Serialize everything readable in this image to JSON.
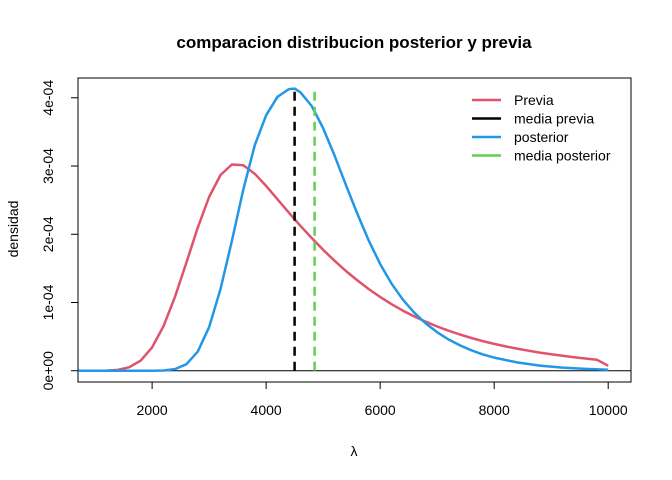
{
  "chart_data": {
    "type": "line",
    "title": "comparacion distribucion posterior y previa",
    "xlabel": "λ",
    "ylabel": "densidad",
    "xlim": [
      700,
      10400
    ],
    "ylim": [
      -1.65e-05,
      0.000429
    ],
    "x_ticks": [
      2000,
      4000,
      6000,
      8000,
      10000
    ],
    "x_tick_labels": [
      "2000",
      "4000",
      "6000",
      "8000",
      "10000"
    ],
    "y_ticks": [
      0,
      0.0001,
      0.0002,
      0.0003,
      0.0004
    ],
    "y_tick_labels": [
      "0e+00",
      "1e-04",
      "2e-04",
      "3e-04",
      "4e-04"
    ],
    "hline": 0,
    "grid": false,
    "legend_position": "top-right",
    "series": [
      {
        "name": "Previa",
        "color": "#df536b",
        "style": "solid",
        "x": [
          700,
          1000,
          1200,
          1400,
          1600,
          1800,
          2000,
          2200,
          2400,
          2600,
          2800,
          3000,
          3200,
          3400,
          3600,
          3800,
          4000,
          4200,
          4400,
          4600,
          4800,
          5000,
          5200,
          5400,
          5600,
          5800,
          6000,
          6200,
          6400,
          6600,
          6800,
          7000,
          7200,
          7400,
          7600,
          7800,
          8000,
          8200,
          8400,
          8600,
          8800,
          9000,
          9200,
          9400,
          9600,
          9800,
          10000
        ],
        "y": [
          0,
          0,
          2e-07,
          1.3e-06,
          5.2e-06,
          1.49e-05,
          3.42e-05,
          6.53e-05,
          0.0001079,
          0.0001581,
          0.0002095,
          0.0002546,
          0.0002868,
          0.0003022,
          0.0003012,
          0.0002887,
          0.0002709,
          0.0002512,
          0.0002316,
          0.0002126,
          0.0001945,
          0.0001773,
          0.0001612,
          0.0001462,
          0.0001324,
          0.0001196,
          0.000108,
          9.75e-05,
          8.8e-05,
          7.95e-05,
          7.18e-05,
          6.49e-05,
          5.87e-05,
          5.31e-05,
          4.8e-05,
          4.35e-05,
          3.94e-05,
          3.57e-05,
          3.24e-05,
          2.94e-05,
          2.66e-05,
          2.42e-05,
          2.19e-05,
          1.98e-05,
          1.79e-05,
          1.62e-05,
          7.3e-06
        ]
      },
      {
        "name": "media previa",
        "color": "#000000",
        "style": "dashed",
        "x": [
          4500,
          4500
        ],
        "y": [
          0,
          0.000413
        ]
      },
      {
        "name": "posterior",
        "color": "#2297e6",
        "style": "solid",
        "x": [
          700,
          2000,
          2200,
          2400,
          2600,
          2800,
          3000,
          3200,
          3400,
          3600,
          3800,
          4000,
          4200,
          4400,
          4500,
          4600,
          4800,
          5000,
          5200,
          5400,
          5600,
          5800,
          6000,
          6200,
          6400,
          6600,
          6800,
          7000,
          7200,
          7400,
          7600,
          7800,
          8000,
          8400,
          8800,
          9200,
          9600,
          10000
        ],
        "y": [
          0,
          0,
          3e-07,
          2.4e-06,
          9.5e-06,
          2.79e-05,
          6.38e-05,
          0.0001196,
          0.0001904,
          0.0002654,
          0.0003303,
          0.0003743,
          0.0004014,
          0.0004128,
          0.0004135,
          0.0004082,
          0.000388,
          0.0003556,
          0.0003156,
          0.0002724,
          0.0002298,
          0.0001906,
          0.0001563,
          0.0001275,
          0.000104,
          8.49e-05,
          6.93e-05,
          5.64e-05,
          4.58e-05,
          3.71e-05,
          2.99e-05,
          2.4e-05,
          1.92e-05,
          1.22e-05,
          7.6e-06,
          4.6e-06,
          2.7e-06,
          1.5e-06
        ]
      },
      {
        "name": "media posterior",
        "color": "#61d04f",
        "style": "dashed",
        "x": [
          4850,
          4850
        ],
        "y": [
          0,
          0.000413
        ]
      }
    ]
  }
}
